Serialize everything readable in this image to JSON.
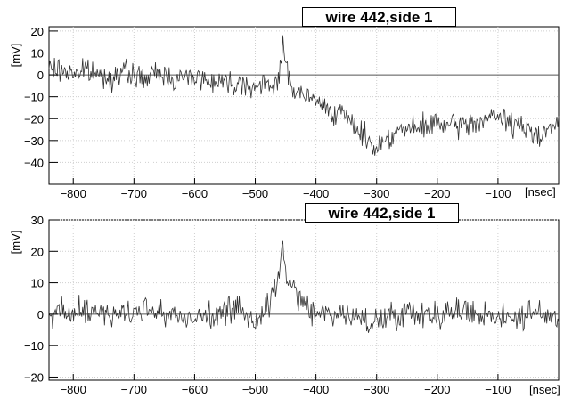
{
  "chart_data": [
    {
      "type": "line",
      "title": "wire 442,side 1",
      "xlabel": "[nsec]",
      "ylabel": "[mV]",
      "xlim": [
        -840,
        0
      ],
      "ylim": [
        -50,
        22
      ],
      "xticks": [
        -800,
        -700,
        -600,
        -500,
        -400,
        -300,
        -200,
        -100
      ],
      "yticks": [
        20,
        10,
        0,
        -10,
        -20,
        -30,
        -40
      ],
      "grid": true,
      "series": [
        {
          "x": [
            -840,
            -820,
            -800,
            -780,
            -760,
            -740,
            -720,
            -700,
            -680,
            -660,
            -640,
            -620,
            -600,
            -580,
            -560,
            -540,
            -520,
            -500,
            -480,
            -470,
            -460,
            -455,
            -450,
            -440,
            -430,
            -420,
            -400,
            -380,
            -360,
            -340,
            -320,
            -310,
            -300,
            -290,
            -280,
            -260,
            -240,
            -220,
            -200,
            -180,
            -160,
            -140,
            -120,
            -100,
            -80,
            -60,
            -40,
            -20,
            0
          ],
          "y": [
            3,
            2,
            1,
            2,
            0,
            -1,
            1,
            0,
            -2,
            1,
            -1,
            -2,
            0,
            -3,
            -2,
            -4,
            -3,
            -6,
            -5,
            -4,
            0,
            13,
            5,
            -5,
            -8,
            -10,
            -12,
            -15,
            -18,
            -22,
            -28,
            -32,
            -33,
            -30,
            -28,
            -25,
            -25,
            -24,
            -22,
            -24,
            -23,
            -22,
            -20,
            -19,
            -22,
            -24,
            -27,
            -25,
            -22
          ],
          "noise": 5,
          "seed": 7
        }
      ]
    },
    {
      "type": "line",
      "title": "wire 442,side 1",
      "xlabel": "[nsec]",
      "ylabel": "[mV]",
      "xlim": [
        -840,
        0
      ],
      "ylim": [
        -21,
        30
      ],
      "xticks": [
        -800,
        -700,
        -600,
        -500,
        -400,
        -300,
        -200,
        -100
      ],
      "yticks": [
        30,
        20,
        10,
        0,
        -10,
        -20
      ],
      "grid": true,
      "series": [
        {
          "x": [
            -840,
            -800,
            -760,
            -720,
            -680,
            -640,
            -600,
            -560,
            -520,
            -500,
            -480,
            -470,
            -460,
            -455,
            -450,
            -440,
            -430,
            -420,
            -400,
            -360,
            -320,
            -300,
            -280,
            -240,
            -200,
            -160,
            -120,
            -80,
            -40,
            0
          ],
          "y": [
            0,
            0,
            1,
            0,
            2,
            0,
            -1,
            0,
            1,
            -2,
            2,
            6,
            14,
            22,
            15,
            8,
            5,
            3,
            1,
            0,
            -2,
            -3,
            0,
            1,
            0,
            1,
            0,
            -1,
            0,
            -1
          ],
          "noise": 4,
          "seed": 23
        }
      ]
    }
  ]
}
